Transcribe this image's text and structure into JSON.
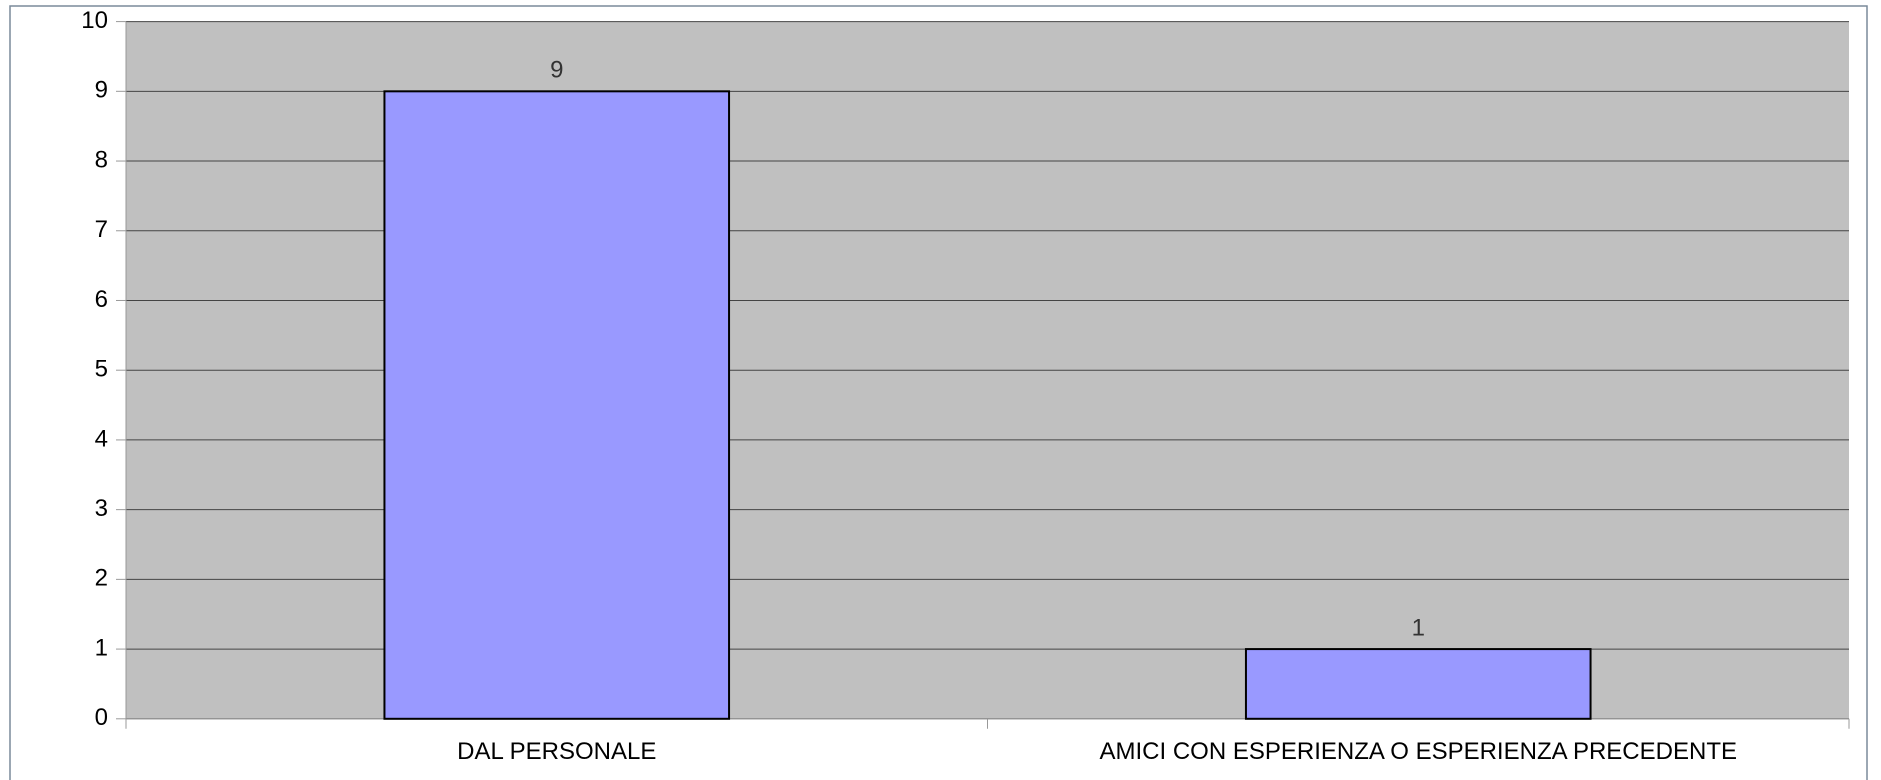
{
  "chart_data": {
    "type": "bar",
    "categories": [
      "DAL PERSONALE",
      "AMICI CON ESPERIENZA O ESPERIENZA PRECEDENTE"
    ],
    "values": [
      9,
      1
    ],
    "color": "#9999ff",
    "ylim": [
      0,
      10
    ],
    "yticks": [
      0,
      1,
      2,
      3,
      4,
      5,
      6,
      7,
      8,
      9,
      10
    ],
    "grid": true
  }
}
